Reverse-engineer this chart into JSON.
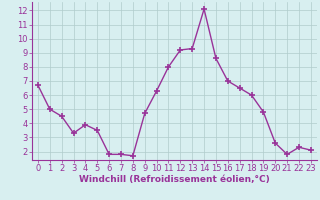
{
  "x": [
    0,
    1,
    2,
    3,
    4,
    5,
    6,
    7,
    8,
    9,
    10,
    11,
    12,
    13,
    14,
    15,
    16,
    17,
    18,
    19,
    20,
    21,
    22,
    23
  ],
  "y": [
    6.7,
    5.0,
    4.5,
    3.3,
    3.9,
    3.5,
    1.8,
    1.8,
    1.7,
    4.7,
    6.3,
    8.0,
    9.2,
    9.3,
    12.1,
    8.6,
    7.0,
    6.5,
    6.0,
    4.8,
    2.6,
    1.8,
    2.3,
    2.1
  ],
  "line_color": "#993399",
  "marker": "+",
  "marker_size": 4,
  "marker_linewidth": 1.2,
  "background_color": "#d8eff0",
  "grid_color": "#b0cccc",
  "xlabel": "Windchill (Refroidissement éolien,°C)",
  "xlabel_color": "#993399",
  "xlabel_fontsize": 6.5,
  "tick_color": "#993399",
  "tick_fontsize": 6,
  "ylim": [
    1.4,
    12.6
  ],
  "xlim": [
    -0.5,
    23.5
  ],
  "yticks": [
    2,
    3,
    4,
    5,
    6,
    7,
    8,
    9,
    10,
    11,
    12
  ],
  "xticks": [
    0,
    1,
    2,
    3,
    4,
    5,
    6,
    7,
    8,
    9,
    10,
    11,
    12,
    13,
    14,
    15,
    16,
    17,
    18,
    19,
    20,
    21,
    22,
    23
  ],
  "linewidth": 1.0
}
